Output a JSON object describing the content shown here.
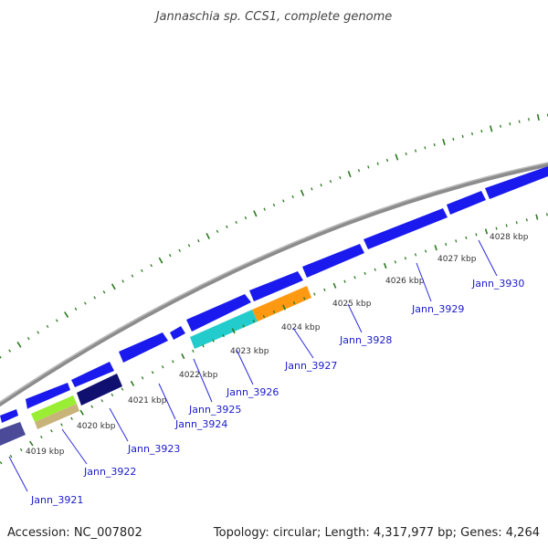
{
  "title": "Jannaschia sp. CCS1, complete genome",
  "footer": {
    "accession": "Accession: NC_007802",
    "summary": "Topology: circular; Length: 4,317,977 bp; Genes: 4,264"
  },
  "colors": {
    "background": "#ffffff",
    "backbone": "#8c8c8c",
    "tick": "#2a7a1e",
    "gene_forward": "#1a1aee",
    "gene_label": "#1a1acc",
    "leader_line": "#2a2ae0"
  },
  "position_labels": [
    "4019 kbp",
    "4020 kbp",
    "4021 kbp",
    "4022 kbp",
    "4023 kbp",
    "4024 kbp",
    "4025 kbp",
    "4026 kbp",
    "4027 kbp",
    "4028 kbp"
  ],
  "genes": [
    {
      "label": "Jann_3921"
    },
    {
      "label": "Jann_3922"
    },
    {
      "label": "Jann_3923"
    },
    {
      "label": "Jann_3924"
    },
    {
      "label": "Jann_3925"
    },
    {
      "label": "Jann_3926"
    },
    {
      "label": "Jann_3927"
    },
    {
      "label": "Jann_3928"
    },
    {
      "label": "Jann_3929"
    },
    {
      "label": "Jann_3930"
    }
  ],
  "feature_colors": {
    "lime": "#99ee33",
    "tan": "#c8b478",
    "navy": "#101070",
    "slate": "#4a4a99",
    "cyan": "#22cccc",
    "orange": "#ff9911"
  }
}
